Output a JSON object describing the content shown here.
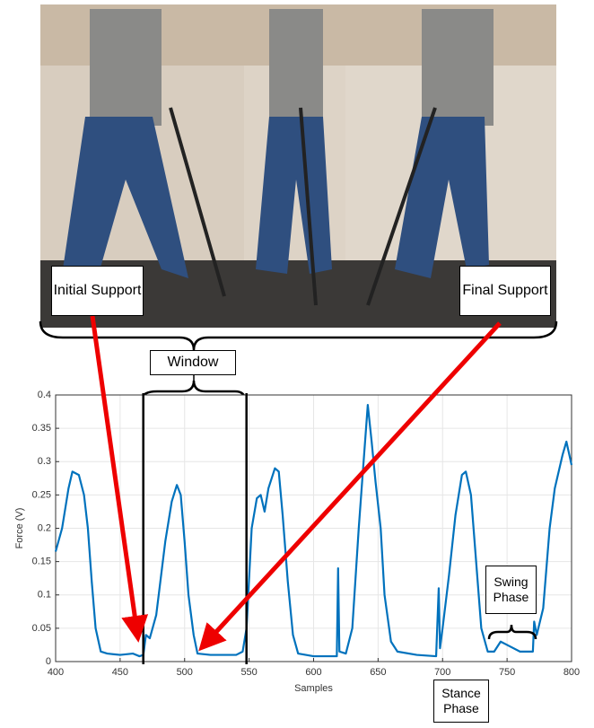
{
  "chart_data": {
    "type": "line",
    "xlabel": "Samples",
    "ylabel": "Force (V)",
    "x": [
      400,
      405,
      410,
      413,
      418,
      422,
      425,
      428,
      431,
      435,
      440,
      450,
      460,
      465,
      468,
      470,
      473,
      478,
      485,
      490,
      494,
      497,
      500,
      503,
      507,
      510,
      520,
      530,
      540,
      545,
      548,
      552,
      556,
      559,
      562,
      565,
      570,
      573,
      576,
      580,
      584,
      588,
      600,
      610,
      618,
      619,
      620,
      625,
      630,
      635,
      638,
      642,
      645,
      648,
      652,
      655,
      660,
      665,
      680,
      695,
      697,
      698,
      700,
      705,
      710,
      715,
      718,
      722,
      726,
      730,
      735,
      740,
      745,
      750,
      760,
      770,
      771,
      773,
      778,
      783,
      787,
      793,
      796,
      800
    ],
    "series": [
      {
        "color": "#0072bd",
        "values": [
          0.165,
          0.2,
          0.26,
          0.285,
          0.28,
          0.25,
          0.2,
          0.12,
          0.05,
          0.015,
          0.012,
          0.01,
          0.012,
          0.008,
          0.01,
          0.04,
          0.035,
          0.07,
          0.18,
          0.24,
          0.265,
          0.25,
          0.18,
          0.1,
          0.04,
          0.012,
          0.01,
          0.01,
          0.01,
          0.015,
          0.05,
          0.2,
          0.245,
          0.25,
          0.225,
          0.26,
          0.29,
          0.285,
          0.22,
          0.12,
          0.04,
          0.012,
          0.008,
          0.008,
          0.008,
          0.14,
          0.015,
          0.012,
          0.05,
          0.2,
          0.28,
          0.385,
          0.33,
          0.27,
          0.2,
          0.1,
          0.03,
          0.015,
          0.01,
          0.008,
          0.11,
          0.02,
          0.05,
          0.13,
          0.22,
          0.28,
          0.285,
          0.25,
          0.15,
          0.05,
          0.015,
          0.015,
          0.03,
          0.025,
          0.015,
          0.015,
          0.06,
          0.04,
          0.08,
          0.2,
          0.26,
          0.31,
          0.33,
          0.295
        ]
      }
    ],
    "xlim": [
      400,
      800
    ],
    "xticks": [
      400,
      450,
      500,
      550,
      600,
      650,
      700,
      750,
      800
    ],
    "ylim": [
      0,
      0.4
    ],
    "yticks": [
      0,
      0.05,
      0.1,
      0.15,
      0.2,
      0.25,
      0.3,
      0.35,
      0.4
    ],
    "grid": true,
    "annotations": [
      "Initial Support",
      "Final Support",
      "Window",
      "Swing Phase",
      "Stance Phase"
    ]
  }
}
